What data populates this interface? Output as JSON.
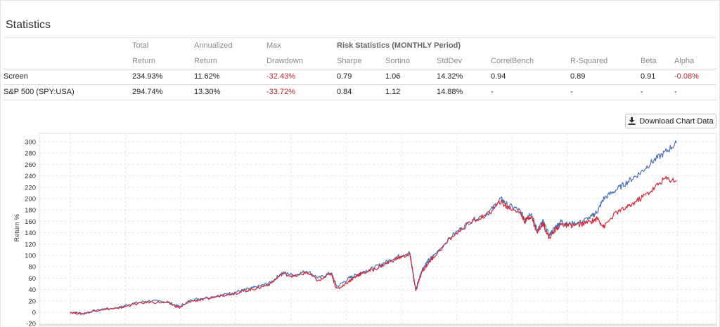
{
  "section_title": "Statistics",
  "table": {
    "header_top": [
      "Total",
      "Annualized",
      "Max",
      "Risk Statistics (MONTHLY Period)"
    ],
    "header_bottom": [
      "Return",
      "Return",
      "Drawdown",
      "Sharpe",
      "Sortino",
      "StdDev",
      "CorrelBench",
      "R-Squared",
      "Beta",
      "Alpha"
    ],
    "rows": [
      {
        "name": "Screen",
        "total_return": "234.93%",
        "annualized_return": "11.62%",
        "max_drawdown": "-32.43%",
        "sharpe": "0.79",
        "sortino": "1.06",
        "stddev": "14.32%",
        "correl_bench": "0.94",
        "r_squared": "0.89",
        "beta": "0.91",
        "alpha": "-0.08%"
      },
      {
        "name": "S&P 500 (SPY:USA)",
        "total_return": "294.74%",
        "annualized_return": "13.30%",
        "max_drawdown": "-33.72%",
        "sharpe": "0.84",
        "sortino": "1.12",
        "stddev": "14.88%",
        "correl_bench": "-",
        "r_squared": "-",
        "beta": "-",
        "alpha": "-"
      }
    ]
  },
  "download_button": {
    "label": "Download Chart Data",
    "icon": "download-icon"
  },
  "chart_data": {
    "type": "line",
    "ylabel": "Return %",
    "ylim": [
      -20,
      310
    ],
    "yticks": [
      -20,
      0,
      20,
      40,
      60,
      80,
      100,
      120,
      140,
      160,
      180,
      200,
      220,
      240,
      260,
      280,
      300
    ],
    "grid": true,
    "x": [
      0,
      0.02,
      0.05,
      0.08,
      0.1,
      0.13,
      0.16,
      0.18,
      0.2,
      0.22,
      0.25,
      0.27,
      0.29,
      0.31,
      0.33,
      0.35,
      0.37,
      0.39,
      0.41,
      0.43,
      0.44,
      0.46,
      0.47,
      0.48,
      0.5,
      0.52,
      0.54,
      0.56,
      0.57,
      0.58,
      0.59,
      0.6,
      0.63,
      0.66,
      0.69,
      0.71,
      0.72,
      0.74,
      0.75,
      0.76,
      0.77,
      0.78,
      0.79,
      0.8,
      0.81,
      0.82,
      0.84,
      0.86,
      0.87,
      0.88,
      0.9,
      0.92,
      0.94,
      0.96,
      0.98,
      1.0
    ],
    "series": [
      {
        "color": "#4a6fb5",
        "values": [
          0,
          -2,
          5,
          8,
          15,
          20,
          18,
          10,
          22,
          25,
          30,
          35,
          40,
          45,
          52,
          70,
          65,
          73,
          60,
          70,
          45,
          60,
          65,
          70,
          78,
          88,
          98,
          105,
          40,
          75,
          90,
          100,
          135,
          160,
          175,
          200,
          190,
          180,
          165,
          175,
          145,
          160,
          135,
          150,
          160,
          155,
          158,
          168,
          178,
          200,
          215,
          230,
          245,
          265,
          280,
          298
        ]
      },
      {
        "color": "#d02838",
        "values": [
          0,
          -3,
          5,
          7,
          13,
          18,
          17,
          8,
          20,
          22,
          30,
          33,
          38,
          43,
          50,
          68,
          63,
          70,
          55,
          68,
          40,
          55,
          62,
          68,
          75,
          85,
          95,
          102,
          38,
          70,
          86,
          98,
          133,
          158,
          173,
          195,
          185,
          178,
          160,
          170,
          140,
          157,
          130,
          145,
          155,
          152,
          154,
          160,
          165,
          150,
          175,
          185,
          200,
          215,
          235,
          232
        ]
      }
    ]
  }
}
